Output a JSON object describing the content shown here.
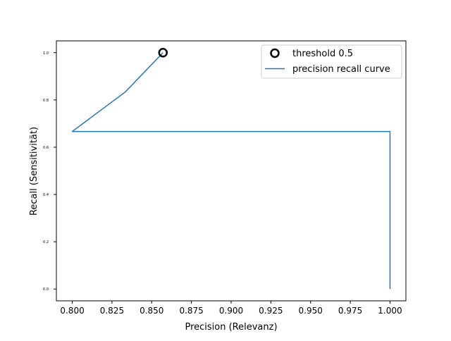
{
  "chart_data": {
    "type": "line",
    "title": "",
    "xlabel": "Precision (Relevanz)",
    "ylabel": "Recall (Sensitivität)",
    "xlim": [
      0.79,
      1.01
    ],
    "ylim": [
      -0.05,
      1.05
    ],
    "xticks": [
      "0.800",
      "0.825",
      "0.850",
      "0.875",
      "0.900",
      "0.925",
      "0.950",
      "0.975",
      "1.000"
    ],
    "xtick_values": [
      0.8,
      0.825,
      0.85,
      0.875,
      0.9,
      0.925,
      0.95,
      0.975,
      1.0
    ],
    "yticks": [
      "0.0",
      "0.2",
      "0.4",
      "0.6",
      "0.8",
      "1.0"
    ],
    "ytick_values": [
      0.0,
      0.2,
      0.4,
      0.6,
      0.8,
      1.0
    ],
    "grid": false,
    "legend_position": "top-right",
    "series": [
      {
        "name": "precision recall curve",
        "type": "line",
        "color": "#1f77b4",
        "x": [
          1.0,
          1.0,
          0.8,
          0.8333,
          0.8571
        ],
        "y": [
          0.0,
          0.6667,
          0.6667,
          0.8333,
          1.0
        ]
      },
      {
        "name": "threshold 0.5",
        "type": "marker",
        "marker": "circle-open",
        "color": "#000000",
        "x": [
          0.8571
        ],
        "y": [
          1.0
        ]
      }
    ]
  }
}
